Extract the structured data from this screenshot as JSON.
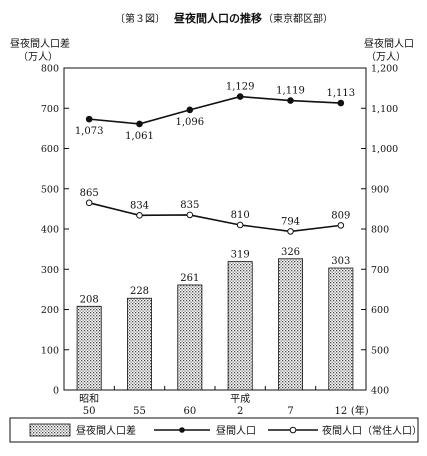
{
  "chart_data": {
    "type": "bar+line",
    "figure_label": "〔第３図〕",
    "title": "昼夜間人口の推移",
    "subtitle": "（東京都区部）",
    "left_axis": {
      "label_line1": "昼夜間人口差",
      "label_line2": "（万人）",
      "range": [
        0,
        800
      ],
      "ticks": [
        "0",
        "100",
        "200",
        "300",
        "400",
        "500",
        "600",
        "700",
        "800"
      ]
    },
    "right_axis": {
      "label_line1": "昼夜間人口",
      "label_line2": "（万人）",
      "range": [
        400,
        1200
      ],
      "ticks": [
        "400",
        "500",
        "600",
        "700",
        "800",
        "900",
        "1,000",
        "1,100",
        "1,200"
      ]
    },
    "x_axis": {
      "era_labels": [
        "昭和",
        "",
        "",
        "平成",
        "",
        ""
      ],
      "categories": [
        "50",
        "55",
        "60",
        "2",
        "7",
        "12"
      ],
      "unit": "(年)"
    },
    "series": [
      {
        "name": "昼夜間人口差",
        "kind": "bar",
        "axis": "left",
        "values": [
          208,
          228,
          261,
          319,
          326,
          303
        ],
        "labels": [
          "208",
          "228",
          "261",
          "319",
          "326",
          "303"
        ]
      },
      {
        "name": "昼間人口",
        "kind": "line",
        "axis": "right",
        "marker": "filled",
        "values": [
          1073,
          1061,
          1096,
          1129,
          1119,
          1113
        ],
        "labels": [
          "1,073",
          "1,061",
          "1,096",
          "1,129",
          "1,119",
          "1,113"
        ]
      },
      {
        "name": "夜間人口（常住人口）",
        "kind": "line",
        "axis": "right",
        "marker": "open",
        "values": [
          865,
          834,
          835,
          810,
          794,
          809
        ],
        "labels": [
          "865",
          "834",
          "835",
          "810",
          "794",
          "809"
        ]
      }
    ],
    "legend_position": "bottom",
    "grid": false
  }
}
